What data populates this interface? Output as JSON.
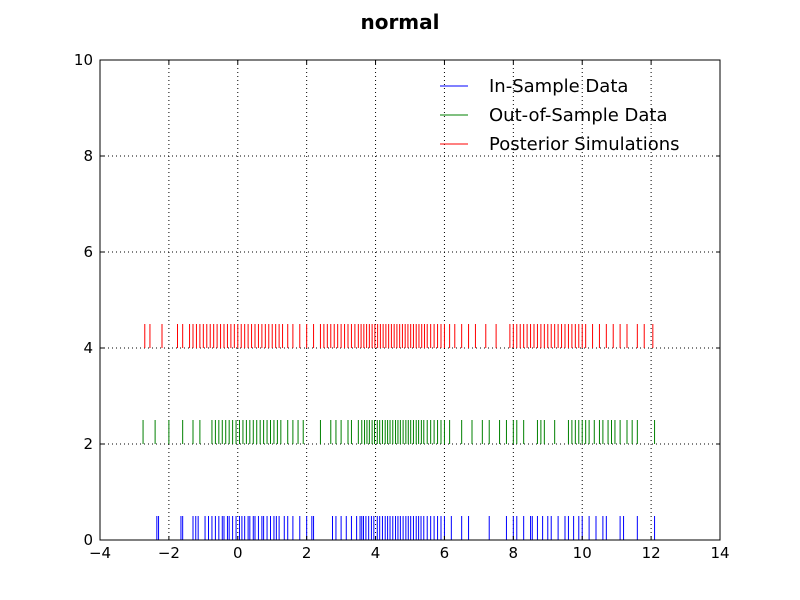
{
  "chart_data": {
    "type": "rug",
    "title": "normal",
    "xlabel": "",
    "ylabel": "",
    "xlim": [
      -4,
      14
    ],
    "ylim": [
      0,
      10
    ],
    "xticks": [
      -4,
      -2,
      0,
      2,
      4,
      6,
      8,
      10,
      12,
      14
    ],
    "yticks": [
      0,
      2,
      4,
      6,
      8,
      10
    ],
    "xtick_labels": [
      "−4",
      "−2",
      "0",
      "2",
      "4",
      "6",
      "8",
      "10",
      "12",
      "14"
    ],
    "ytick_labels": [
      "0",
      "2",
      "4",
      "6",
      "8",
      "10"
    ],
    "grid": true,
    "legend_position": "top-right",
    "series": [
      {
        "name": "In-Sample Data",
        "color": "#0000ff",
        "y_range": [
          0,
          0.5
        ],
        "x": [
          -2.35,
          -2.3,
          -1.65,
          -1.6,
          -1.3,
          -1.22,
          -1.15,
          -0.95,
          -0.85,
          -0.75,
          -0.65,
          -0.55,
          -0.45,
          -0.4,
          -0.3,
          -0.25,
          -0.15,
          -0.05,
          0.05,
          0.12,
          0.2,
          0.3,
          0.35,
          0.45,
          0.5,
          0.6,
          0.7,
          0.75,
          0.85,
          0.95,
          1.05,
          1.12,
          1.2,
          1.35,
          1.45,
          1.6,
          1.8,
          2.0,
          2.15,
          2.2,
          2.75,
          2.85,
          3.0,
          3.15,
          3.3,
          3.45,
          3.55,
          3.6,
          3.65,
          3.72,
          3.8,
          3.88,
          3.95,
          4.05,
          4.12,
          4.2,
          4.28,
          4.35,
          4.42,
          4.5,
          4.58,
          4.65,
          4.72,
          4.8,
          4.88,
          4.95,
          5.02,
          5.1,
          5.18,
          5.25,
          5.32,
          5.4,
          5.5,
          5.6,
          5.7,
          5.8,
          5.9,
          6.0,
          6.2,
          6.5,
          6.7,
          7.3,
          7.8,
          8.0,
          8.1,
          8.3,
          8.5,
          8.55,
          8.7,
          8.85,
          9.0,
          9.1,
          9.3,
          9.5,
          9.6,
          9.75,
          9.9,
          10.0,
          10.2,
          10.4,
          10.6,
          10.7,
          11.1,
          11.2,
          11.6,
          12.1
        ]
      },
      {
        "name": "Out-of-Sample Data",
        "color": "#008000",
        "y_range": [
          2,
          2.5
        ],
        "x": [
          -2.75,
          -2.4,
          -2.0,
          -1.6,
          -1.3,
          -1.1,
          -0.75,
          -0.65,
          -0.55,
          -0.45,
          -0.35,
          -0.25,
          -0.15,
          -0.05,
          0.05,
          0.15,
          0.25,
          0.35,
          0.45,
          0.55,
          0.65,
          0.75,
          0.85,
          0.95,
          1.05,
          1.15,
          1.25,
          1.45,
          1.6,
          1.75,
          1.9,
          2.4,
          2.7,
          2.85,
          3.0,
          3.2,
          3.3,
          3.5,
          3.6,
          3.68,
          3.75,
          3.82,
          3.9,
          3.97,
          4.05,
          4.12,
          4.2,
          4.28,
          4.35,
          4.42,
          4.5,
          4.58,
          4.65,
          4.72,
          4.8,
          4.88,
          4.95,
          5.02,
          5.1,
          5.18,
          5.25,
          5.33,
          5.4,
          5.5,
          5.6,
          5.7,
          5.8,
          5.9,
          6.0,
          6.15,
          6.5,
          6.8,
          7.1,
          7.3,
          7.6,
          7.8,
          8.0,
          8.1,
          8.3,
          8.7,
          8.8,
          8.9,
          9.2,
          9.6,
          9.7,
          9.8,
          9.9,
          10.0,
          10.1,
          10.2,
          10.35,
          10.5,
          10.6,
          10.75,
          10.85,
          10.95,
          11.1,
          11.3,
          11.45,
          11.6,
          12.1
        ]
      },
      {
        "name": "Posterior Simulations",
        "color": "#ff0000",
        "y_range": [
          4,
          4.5
        ],
        "x": [
          -2.7,
          -2.55,
          -2.2,
          -1.75,
          -1.6,
          -1.4,
          -1.3,
          -1.2,
          -1.1,
          -1.0,
          -0.9,
          -0.8,
          -0.7,
          -0.6,
          -0.5,
          -0.4,
          -0.3,
          -0.2,
          -0.1,
          0.0,
          0.1,
          0.2,
          0.3,
          0.4,
          0.5,
          0.6,
          0.7,
          0.8,
          0.9,
          1.0,
          1.1,
          1.2,
          1.3,
          1.45,
          1.6,
          1.8,
          2.0,
          2.2,
          2.4,
          2.5,
          2.6,
          2.7,
          2.8,
          2.9,
          3.0,
          3.1,
          3.2,
          3.3,
          3.4,
          3.5,
          3.58,
          3.66,
          3.74,
          3.82,
          3.9,
          3.98,
          4.06,
          4.14,
          4.22,
          4.3,
          4.38,
          4.46,
          4.54,
          4.62,
          4.7,
          4.78,
          4.86,
          4.94,
          5.02,
          5.1,
          5.18,
          5.26,
          5.34,
          5.42,
          5.5,
          5.6,
          5.7,
          5.8,
          5.9,
          6.0,
          6.15,
          6.3,
          6.5,
          6.7,
          6.9,
          7.2,
          7.5,
          7.9,
          8.0,
          8.1,
          8.2,
          8.3,
          8.4,
          8.5,
          8.6,
          8.7,
          8.8,
          8.9,
          9.0,
          9.1,
          9.2,
          9.3,
          9.4,
          9.5,
          9.6,
          9.7,
          9.8,
          9.9,
          10.0,
          10.1,
          10.3,
          10.5,
          10.7,
          10.9,
          11.1,
          11.3,
          11.6,
          11.8,
          12.05
        ]
      }
    ]
  }
}
